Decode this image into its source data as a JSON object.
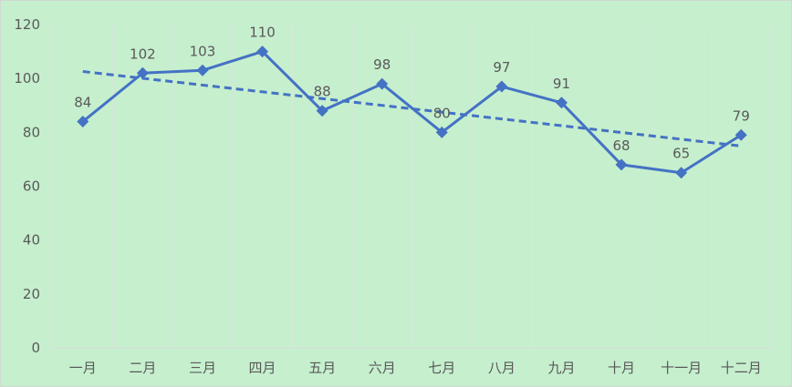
{
  "chart_data": {
    "type": "line",
    "title": "",
    "xlabel": "",
    "ylabel": "",
    "categories": [
      "一月",
      "二月",
      "三月",
      "四月",
      "五月",
      "六月",
      "七月",
      "八月",
      "九月",
      "十月",
      "十一月",
      "十二月"
    ],
    "series": [
      {
        "values": [
          84,
          102,
          103,
          110,
          88,
          98,
          80,
          97,
          91,
          68,
          65,
          79
        ],
        "color": "#4472c4",
        "marker": "diamond",
        "data_labels": true
      }
    ],
    "trendline": {
      "type": "linear",
      "style": "dashed",
      "color": "#4472c4"
    },
    "ylim": [
      0,
      120
    ],
    "yticks": [
      "0",
      "20",
      "40",
      "60",
      "80",
      "100",
      "120"
    ],
    "grid": "vertical",
    "legend": "none",
    "background": "#c6efce"
  }
}
